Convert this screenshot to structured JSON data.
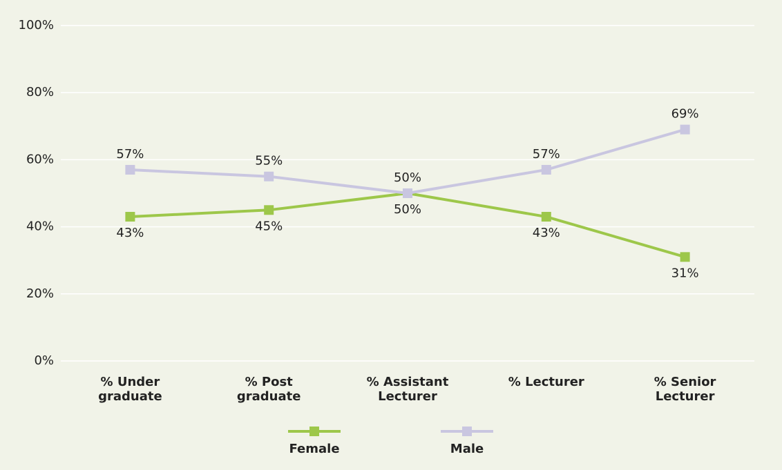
{
  "chart_data": {
    "type": "line",
    "categories": [
      "% Under\ngraduate",
      "% Post\ngraduate",
      "% Assistant\nLecturer",
      "% Lecturer",
      "% Senior\nLecturer"
    ],
    "series": [
      {
        "name": "Female",
        "color": "#9dc74a",
        "values": [
          43,
          45,
          50,
          43,
          31
        ],
        "value_labels": [
          "43%",
          "45%",
          "50%",
          "43%",
          "31%"
        ]
      },
      {
        "name": "Male",
        "color": "#c9c6e0",
        "values": [
          57,
          55,
          50,
          57,
          69
        ],
        "value_labels": [
          "57%",
          "55%",
          "50%",
          "57%",
          "69%"
        ]
      }
    ],
    "ylim": [
      0,
      100
    ],
    "yticks": [
      {
        "value": 0,
        "label": "0%"
      },
      {
        "value": 20,
        "label": "20%"
      },
      {
        "value": 40,
        "label": "40%"
      },
      {
        "value": 60,
        "label": "60%"
      },
      {
        "value": 80,
        "label": "80%"
      },
      {
        "value": 100,
        "label": "100%"
      }
    ],
    "grid": true
  }
}
